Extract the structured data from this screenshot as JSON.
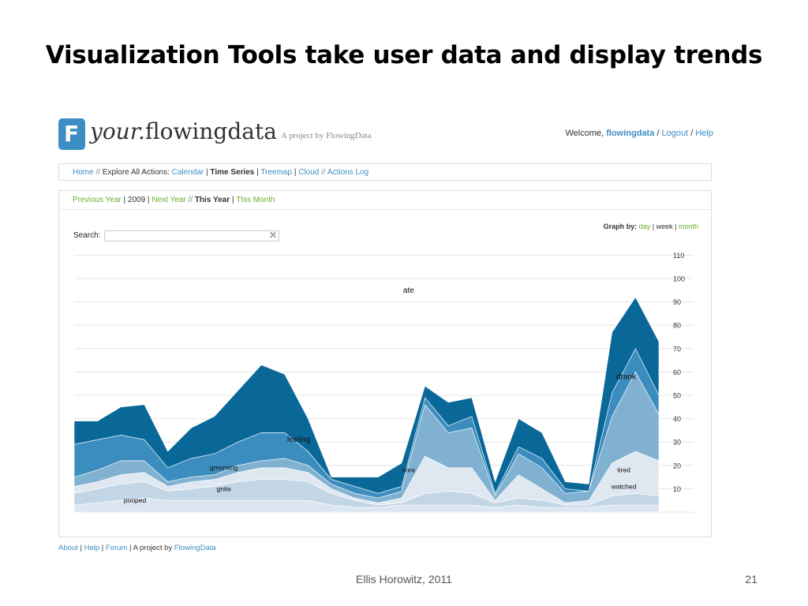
{
  "slide": {
    "title": "Visualization Tools take user data and display trends",
    "footer": "Ellis Horowitz, 2011",
    "page_number": "21"
  },
  "app": {
    "logo_icon": "F",
    "logo_your": "your.",
    "logo_name": "flowingdata",
    "tagline": "A project by FlowingData",
    "welcome_prefix": "Welcome,",
    "username": "flowingdata",
    "logout": "Logout",
    "help": "Help",
    "slash": "/"
  },
  "nav": {
    "home": "Home",
    "explore_label": "Explore All Actions:",
    "calendar": "Calendar",
    "time_series": "Time Series",
    "treemap": "Treemap",
    "cloud": "Cloud",
    "actions_log": "Actions Log",
    "dslash": "//",
    "bar": "|"
  },
  "yearnav": {
    "previous_year": "Previous Year",
    "year": "2009",
    "next_year": "Next Year",
    "this_year": "This Year",
    "this_month": "This Month"
  },
  "search": {
    "label": "Search:",
    "value": "",
    "placeholder": "",
    "clear_icon": "close-icon"
  },
  "graph_by": {
    "label": "Graph by:",
    "day": "day",
    "week": "week",
    "month": "month"
  },
  "footer": {
    "about": "About",
    "help": "Help",
    "forum": "Forum",
    "project_text": "A project by",
    "flowingdata": "FlowingData"
  },
  "colors": {
    "link": "#3d8ec4",
    "green": "#6aad2c",
    "stream_dark": "#0a6899",
    "stream_mid": "#3c8dbf",
    "stream_light": "#80b1d1",
    "stream_pale": "#c3d6e6"
  },
  "chart_data": {
    "type": "area",
    "stacked": true,
    "y_ticks": [
      10,
      20,
      30,
      40,
      50,
      60,
      70,
      80,
      90,
      100,
      110
    ],
    "ylim": [
      0,
      110
    ],
    "x": [
      0,
      1,
      2,
      3,
      4,
      5,
      6,
      7,
      8,
      9,
      10,
      11,
      12,
      13,
      14,
      15,
      16,
      17,
      18,
      19,
      20,
      21,
      22,
      23,
      24,
      25
    ],
    "series": [
      {
        "values": [
          3,
          4,
          5,
          6,
          5,
          5,
          5,
          5,
          5,
          5,
          5,
          3,
          2,
          2,
          3,
          3,
          3,
          3,
          2,
          3,
          2,
          2,
          2,
          3,
          3,
          3
        ],
        "color": "#dce6f0"
      },
      {
        "values": [
          5,
          6,
          7,
          7,
          4,
          5,
          6,
          8,
          9,
          9,
          8,
          5,
          3,
          1,
          1,
          5,
          6,
          5,
          2,
          3,
          3,
          1,
          1,
          4,
          5,
          4
        ],
        "color": "#c3d6e6"
      },
      {
        "values": [
          3,
          3,
          4,
          4,
          2,
          3,
          3,
          4,
          5,
          5,
          4,
          2,
          1,
          1,
          2,
          16,
          10,
          11,
          1,
          10,
          5,
          1,
          2,
          14,
          18,
          15
        ],
        "color": "#dfe8f1"
      },
      {
        "values": [
          4,
          5,
          6,
          5,
          2,
          2,
          2,
          3,
          3,
          4,
          3,
          2,
          2,
          2,
          3,
          22,
          15,
          17,
          2,
          9,
          9,
          4,
          4,
          20,
          34,
          20
        ],
        "color": "#80b1d1"
      },
      {
        "values": [
          14,
          13,
          11,
          9,
          6,
          8,
          9,
          10,
          12,
          11,
          6,
          2,
          3,
          2,
          2,
          3,
          3,
          5,
          1,
          3,
          4,
          2,
          0,
          10,
          10,
          8
        ],
        "color": "#3c8dbf"
      },
      {
        "values": [
          10,
          8,
          12,
          15,
          7,
          13,
          16,
          22,
          29,
          25,
          14,
          1,
          4,
          7,
          10,
          5,
          10,
          8,
          5,
          12,
          11,
          3,
          3,
          26,
          22,
          23
        ],
        "color": "#0a6899"
      }
    ],
    "labels": [
      "pooped",
      "gnite",
      "gmorning",
      "feeling",
      "ate",
      "sore",
      "drank",
      "tired",
      "watched"
    ]
  }
}
